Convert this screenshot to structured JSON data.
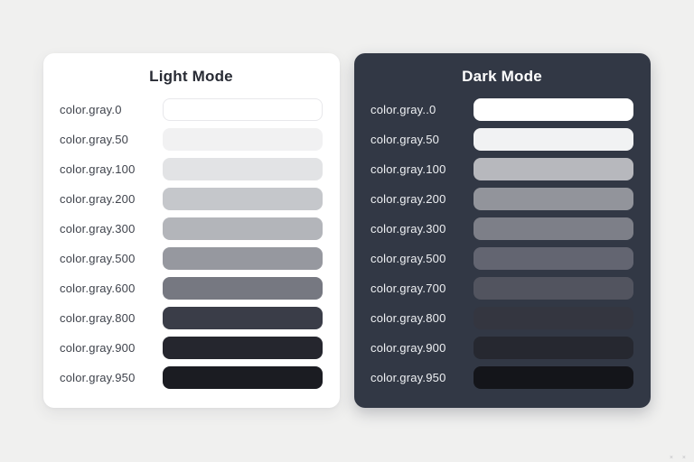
{
  "page": {
    "background": "#f0f0ef",
    "corner_marks": "× ×"
  },
  "light_panel": {
    "title": "Light Mode",
    "background": "#ffffff",
    "title_color": "#282b34",
    "label_color": "#3f434c",
    "rows": [
      {
        "label": "color.gray.0",
        "color": "#ffffff",
        "border": "#e8e8eb"
      },
      {
        "label": "color.gray.50",
        "color": "#f1f1f2"
      },
      {
        "label": "color.gray.100",
        "color": "#e2e3e5"
      },
      {
        "label": "color.gray.200",
        "color": "#c5c7cb"
      },
      {
        "label": "color.gray.300",
        "color": "#b3b5ba"
      },
      {
        "label": "color.gray.500",
        "color": "#96989f"
      },
      {
        "label": "color.gray.600",
        "color": "#767881"
      },
      {
        "label": "color.gray.800",
        "color": "#3a3d48"
      },
      {
        "label": "color.gray.900",
        "color": "#25262e"
      },
      {
        "label": "color.gray.950",
        "color": "#1b1c22"
      }
    ]
  },
  "dark_panel": {
    "title": "Dark Mode",
    "background": "#323845",
    "title_color": "#ffffff",
    "label_color": "#eef0f3",
    "rows": [
      {
        "label": "color.gray..0",
        "color": "#ffffff"
      },
      {
        "label": "color.gray.50",
        "color": "#f1f2f3"
      },
      {
        "label": "color.gray.100",
        "color": "#b7b8bd"
      },
      {
        "label": "color.gray.200",
        "color": "#92949b"
      },
      {
        "label": "color.gray.300",
        "color": "#7d7f88"
      },
      {
        "label": "color.gray.500",
        "color": "#636571"
      },
      {
        "label": "color.gray.700",
        "color": "#52545f"
      },
      {
        "label": "color.gray.800",
        "color": "#343640"
      },
      {
        "label": "color.gray.900",
        "color": "#262830"
      },
      {
        "label": "color.gray.950",
        "color": "#14151a"
      }
    ]
  }
}
